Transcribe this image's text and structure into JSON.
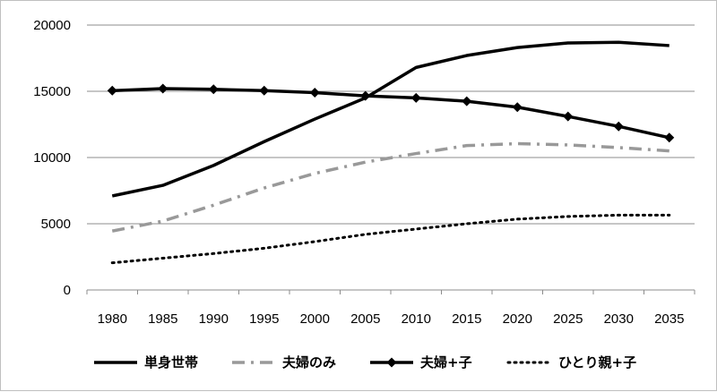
{
  "chart_data": {
    "type": "line",
    "title": "",
    "xlabel": "",
    "ylabel": "",
    "x": [
      "1980",
      "1985",
      "1990",
      "1995",
      "2000",
      "2005",
      "2010",
      "2015",
      "2020",
      "2025",
      "2030",
      "2035"
    ],
    "ylim": [
      0,
      20000
    ],
    "yticks": [
      "0",
      "5000",
      "10000",
      "15000",
      "20000"
    ],
    "grid": true,
    "legend_position": "bottom",
    "series": [
      {
        "name": "単身世帯",
        "style": "solid",
        "color": "#000000",
        "values": [
          7100,
          7900,
          9400,
          11200,
          12900,
          14500,
          16800,
          17700,
          18300,
          18650,
          18700,
          18450
        ]
      },
      {
        "name": "夫婦のみ",
        "style": "dashdot",
        "color": "#999999",
        "values": [
          4450,
          5200,
          6400,
          7700,
          8800,
          9650,
          10300,
          10900,
          11050,
          10950,
          10750,
          10500
        ]
      },
      {
        "name": "夫婦+子",
        "style": "solid-diamond",
        "color": "#000000",
        "values": [
          15050,
          15200,
          15150,
          15050,
          14900,
          14650,
          14500,
          14250,
          13800,
          13100,
          12350,
          11500
        ]
      },
      {
        "name": "ひとり親+子",
        "style": "dotted",
        "color": "#000000",
        "values": [
          2050,
          2400,
          2750,
          3150,
          3650,
          4200,
          4600,
          5000,
          5350,
          5550,
          5650,
          5650
        ]
      }
    ]
  }
}
